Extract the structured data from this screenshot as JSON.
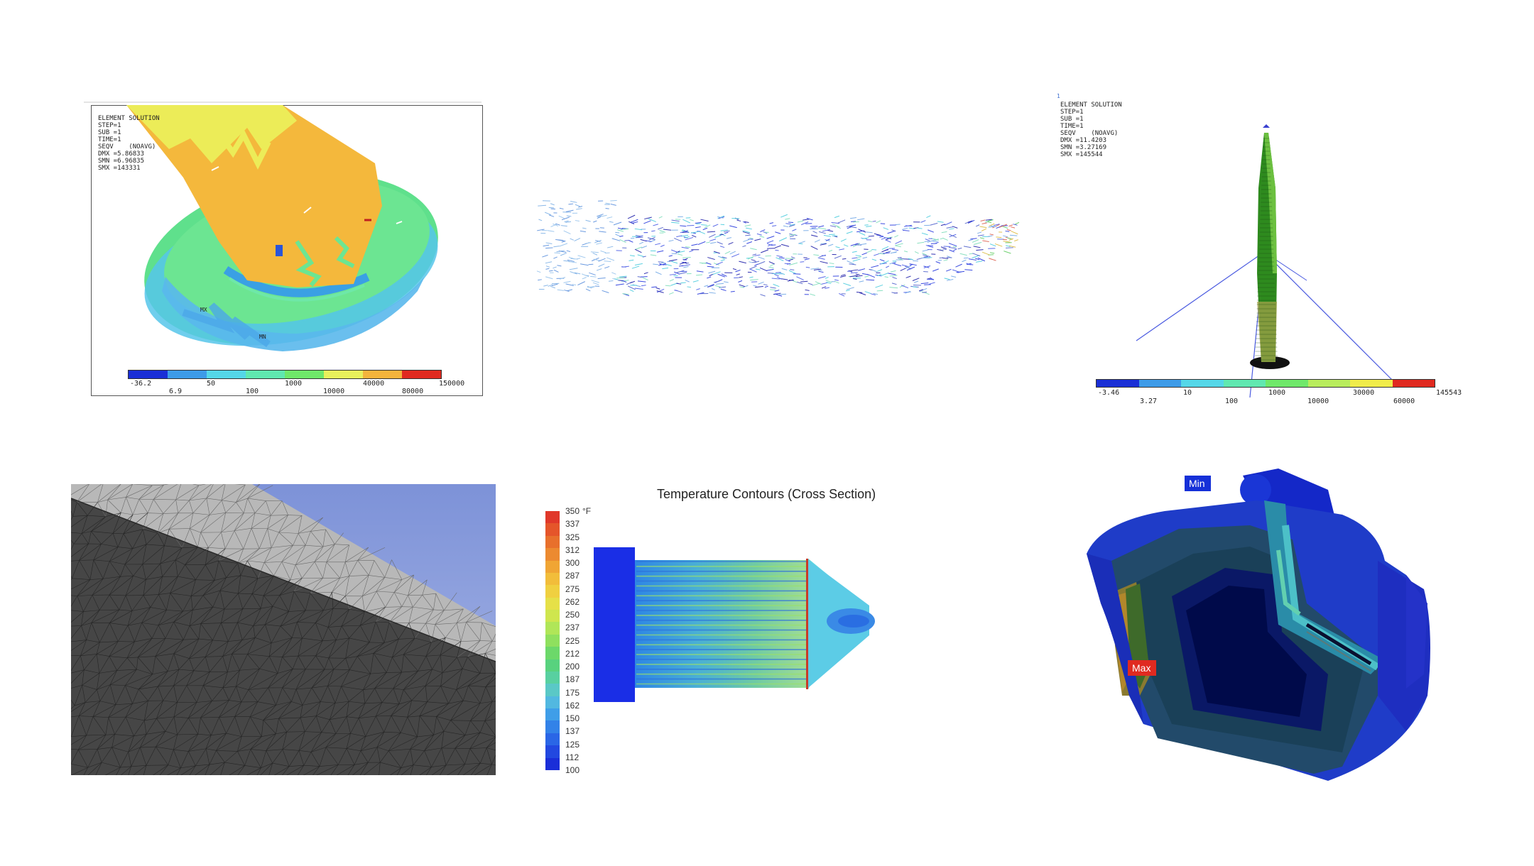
{
  "panel1": {
    "info": [
      "ELEMENT SOLUTION",
      "STEP=1",
      "SUB =1",
      "TIME=1",
      "SEQV    (NOAVG)",
      "DMX =5.86833",
      "SMN =6.96835",
      "SMX =143331"
    ],
    "labels_mx": "MX",
    "labels_mn": "MN",
    "ticks_top": [
      "-36.2",
      "50",
      "1000",
      "40000",
      "150000"
    ],
    "ticks_bottom": [
      "6.9",
      "100",
      "10000",
      "80000"
    ],
    "colors": [
      "#1a2fd6",
      "#3d9be8",
      "#55d7e8",
      "#60e8b0",
      "#6fe86a",
      "#e8f05c",
      "#f4b43c",
      "#e02a20"
    ]
  },
  "panel3": {
    "header": "1",
    "info": [
      "ELEMENT SOLUTION",
      "STEP=1",
      "SUB =1",
      "TIME=1",
      "SEQV    (NOAVG)",
      "DMX =11.4203",
      "SMN =3.27169",
      "SMX =145544"
    ],
    "ticks_top": [
      "-3.46",
      "10",
      "1000",
      "30000",
      "145543"
    ],
    "ticks_bottom": [
      "3.27",
      "100",
      "10000",
      "60000"
    ],
    "colors": [
      "#1a2fd6",
      "#3d9be8",
      "#55d7e8",
      "#60e8b0",
      "#6fe86a",
      "#b8ec5c",
      "#f0ec4a",
      "#e02a20"
    ]
  },
  "panel5": {
    "title": "Temperature Contours (Cross Section)",
    "unit": "°F",
    "legend": [
      "350",
      "337",
      "325",
      "312",
      "300",
      "287",
      "275",
      "262",
      "250",
      "237",
      "225",
      "212",
      "200",
      "187",
      "175",
      "162",
      "150",
      "137",
      "125",
      "112",
      "100"
    ],
    "legend_colors": [
      "#e0382a",
      "#e5552a",
      "#e8702c",
      "#ec8a30",
      "#f0a534",
      "#f2bd3a",
      "#f0d040",
      "#e6e048",
      "#cfe64e",
      "#b0e658",
      "#8fe05e",
      "#6cd86a",
      "#58d27e",
      "#58d0a0",
      "#5ac8c6",
      "#52b8e0",
      "#3f9ee8",
      "#3282e8",
      "#2a66e6",
      "#2248e0",
      "#1a2ed8"
    ]
  },
  "panel6": {
    "min_label": "Min",
    "max_label": "Max",
    "min_color": "#1530d8",
    "max_color": "#e02a20"
  }
}
